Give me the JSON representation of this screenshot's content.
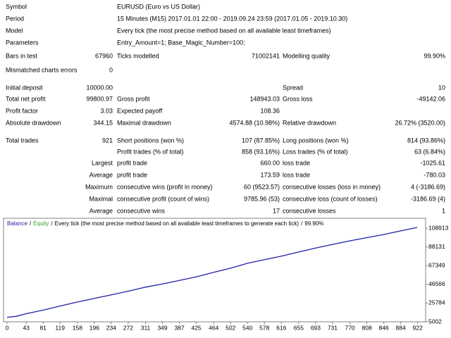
{
  "header": [
    [
      "Symbol",
      "EURUSD (Euro vs US Dollar)"
    ],
    [
      "Period",
      "15 Minutes (M15) 2017.01.01 22:00 - 2019.09.24 23:59 (2017.01.05 - 2019.10.30)"
    ],
    [
      "Model",
      "Every tick (the most precise method based on all available least timeframes)"
    ],
    [
      "Parameters",
      "Entry_Amount=1; Base_Magic_Number=100;"
    ]
  ],
  "stats": [
    [
      "Bars in test",
      "67960",
      "Ticks modelled",
      "71002141",
      "Modelling quality",
      "99.90%"
    ],
    [
      "Mismatched charts errors",
      "0",
      null,
      null,
      null,
      null
    ],
    [
      "Initial deposit",
      "10000.00",
      null,
      null,
      "Spread",
      "10"
    ],
    [
      "Total net profit",
      "99800.97",
      "Gross profit",
      "148943.03",
      "Gross loss",
      "-49142.06"
    ],
    [
      "Profit factor",
      "3.03",
      "Expected payoff",
      "108.36",
      null,
      null
    ],
    [
      "Absolute drawdown",
      "344.15",
      "Maximal drawdown",
      "4574.88 (10.98%)",
      "Relative drawdown",
      "26.72% (3520.00)"
    ],
    [
      "Total trades",
      "921",
      "Short positions (won %)",
      "107 (87.85%)",
      "Long positions (won %)",
      "814 (93.86%)"
    ],
    [
      null,
      null,
      "Profit trades (% of total)",
      "858 (93.16%)",
      "Loss trades (% of total)",
      "63 (6.84%)"
    ],
    [
      null,
      "Largest",
      "profit trade",
      "660.00",
      "loss trade",
      "-1025.61"
    ],
    [
      null,
      "Average",
      "profit trade",
      "173.59",
      "loss trade",
      "-780.03"
    ],
    [
      null,
      "Maximum",
      "consecutive wins (profit in money)",
      "60 (9523.57)",
      "consecutive losses (loss in money)",
      "4 (-3186.69)"
    ],
    [
      null,
      "Maximal",
      "consecutive profit (count of wins)",
      "9785.96 (53)",
      "consecutive loss (count of losses)",
      "-3186.69 (4)"
    ],
    [
      null,
      "Average",
      "consecutive wins",
      "17",
      "consecutive losses",
      "1"
    ]
  ],
  "chart_data": {
    "type": "line",
    "legend": [
      {
        "text": "Balance",
        "color": "#1f1fa8"
      },
      {
        "text": "Equity",
        "color": "#2e9e2e"
      },
      {
        "text": "Every tick (the most precise method based on all available least timeframes to generate each tick)",
        "color": "#000000"
      },
      {
        "text": "99.90%",
        "color": "#000000"
      }
    ],
    "legend_separator": "/",
    "x": [
      0,
      20,
      43,
      81,
      119,
      158,
      196,
      234,
      272,
      311,
      349,
      387,
      425,
      464,
      502,
      540,
      578,
      616,
      655,
      693,
      731,
      770,
      808,
      846,
      884,
      921
    ],
    "series": [
      {
        "name": "Balance",
        "color": "#1f1fa8",
        "values": [
          10000,
          11000,
          14000,
          18000,
          22500,
          27000,
          31000,
          35000,
          39000,
          43500,
          47000,
          51000,
          55000,
          60000,
          64500,
          70000,
          74000,
          78000,
          82500,
          87000,
          91000,
          95000,
          98500,
          102000,
          106000,
          109800
        ]
      }
    ],
    "xlim": [
      0,
      940
    ],
    "ylim": [
      5002,
      120000
    ],
    "xticks": [
      0,
      43,
      81,
      119,
      158,
      196,
      234,
      272,
      311,
      349,
      387,
      425,
      464,
      502,
      540,
      578,
      616,
      655,
      693,
      731,
      770,
      808,
      846,
      884,
      922
    ],
    "yticks": [
      5002,
      25784,
      46566,
      67349,
      88131,
      108913
    ]
  }
}
